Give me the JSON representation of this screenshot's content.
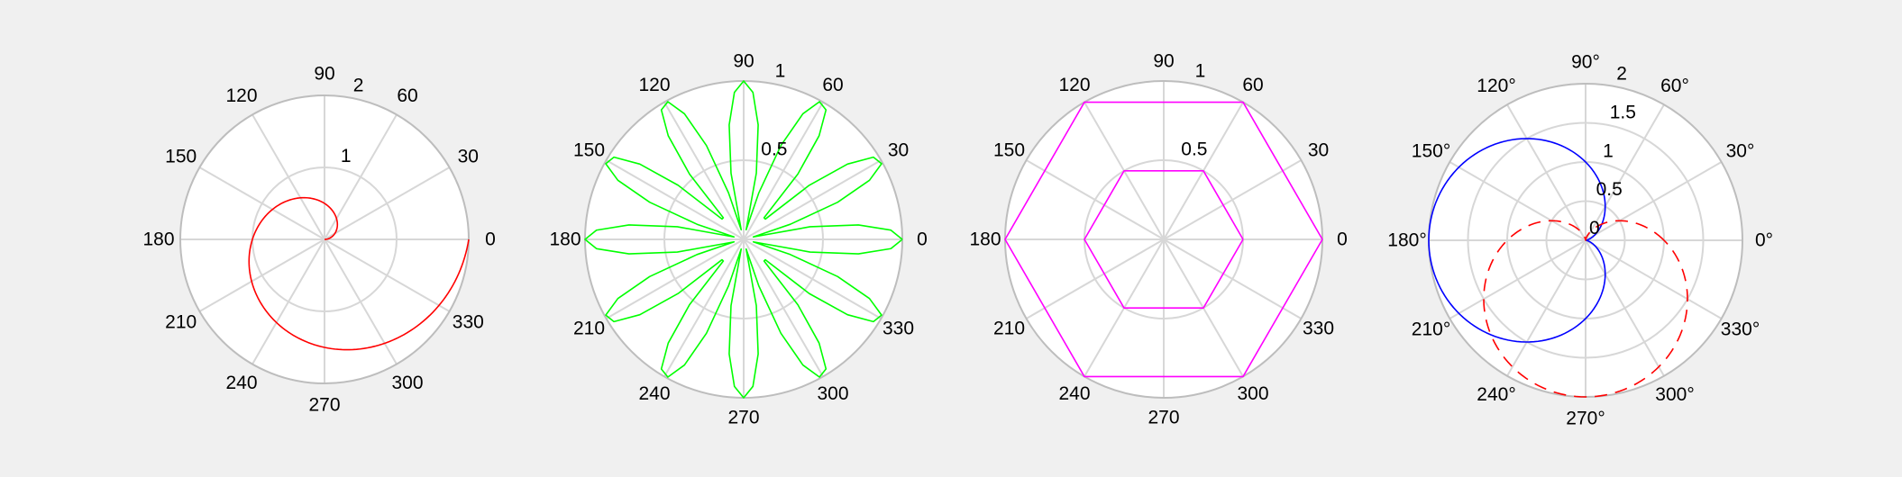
{
  "chart_data": [
    {
      "type": "polar-line",
      "theta_labels": [
        "0",
        "30",
        "60",
        "90",
        "120",
        "150",
        "180",
        "210",
        "240",
        "270",
        "300",
        "330"
      ],
      "r_ticks": [
        1,
        2
      ],
      "r_tick_labels": [
        "1",
        "2"
      ],
      "rlim": [
        0,
        2
      ],
      "grid": true,
      "series": [
        {
          "color": "#ff0000",
          "dash": "",
          "equation": "r = theta / pi",
          "theta_range": [
            0,
            6.2832
          ],
          "samples": 200
        }
      ]
    },
    {
      "type": "polar-line",
      "theta_labels": [
        "0",
        "30",
        "60",
        "90",
        "120",
        "150",
        "180",
        "210",
        "240",
        "270",
        "300",
        "330"
      ],
      "r_ticks": [
        0.5,
        1
      ],
      "r_tick_labels": [
        "0.5",
        "1"
      ],
      "rlim": [
        0,
        1
      ],
      "grid": true,
      "series": [
        {
          "color": "#00ff00",
          "dash": "",
          "equation": "r = |cos(6 theta)|",
          "theta_range": [
            0,
            6.2832
          ],
          "samples": 100
        }
      ]
    },
    {
      "type": "polar-line",
      "theta_labels": [
        "0",
        "30",
        "60",
        "90",
        "120",
        "150",
        "180",
        "210",
        "240",
        "270",
        "300",
        "330"
      ],
      "r_ticks": [
        0.5,
        1
      ],
      "r_tick_labels": [
        "0.5",
        "1"
      ],
      "rlim": [
        0,
        1
      ],
      "grid": true,
      "series": [
        {
          "color": "#ff00ff",
          "dash": "",
          "theta_deg": [
            0,
            60,
            120,
            180,
            240,
            300,
            360
          ],
          "r": [
            1,
            1,
            1,
            1,
            1,
            1,
            1
          ]
        },
        {
          "color": "#ff00ff",
          "dash": "",
          "theta_deg": [
            0,
            60,
            120,
            180,
            240,
            300,
            360
          ],
          "r": [
            0.5,
            0.5,
            0.5,
            0.5,
            0.5,
            0.5,
            0.5
          ]
        }
      ]
    },
    {
      "type": "polar-line",
      "theta_labels": [
        "0°",
        "30°",
        "60°",
        "90°",
        "120°",
        "150°",
        "180°",
        "210°",
        "240°",
        "270°",
        "300°",
        "330°"
      ],
      "r_ticks": [
        0,
        0.5,
        1,
        1.5,
        2
      ],
      "r_tick_labels": [
        "0",
        "0.5",
        "1",
        "1.5",
        "2"
      ],
      "rlim": [
        0,
        2
      ],
      "grid": true,
      "series": [
        {
          "color": "#0000ff",
          "dash": "",
          "equation": "r = 1 - cos(theta)",
          "theta_range": [
            0,
            6.2832
          ],
          "samples": 200
        },
        {
          "color": "#ff0000",
          "dash": "14 9",
          "equation": "r = 1 - sin(theta)",
          "theta_range": [
            0,
            6.2832
          ],
          "samples": 200
        }
      ]
    }
  ]
}
